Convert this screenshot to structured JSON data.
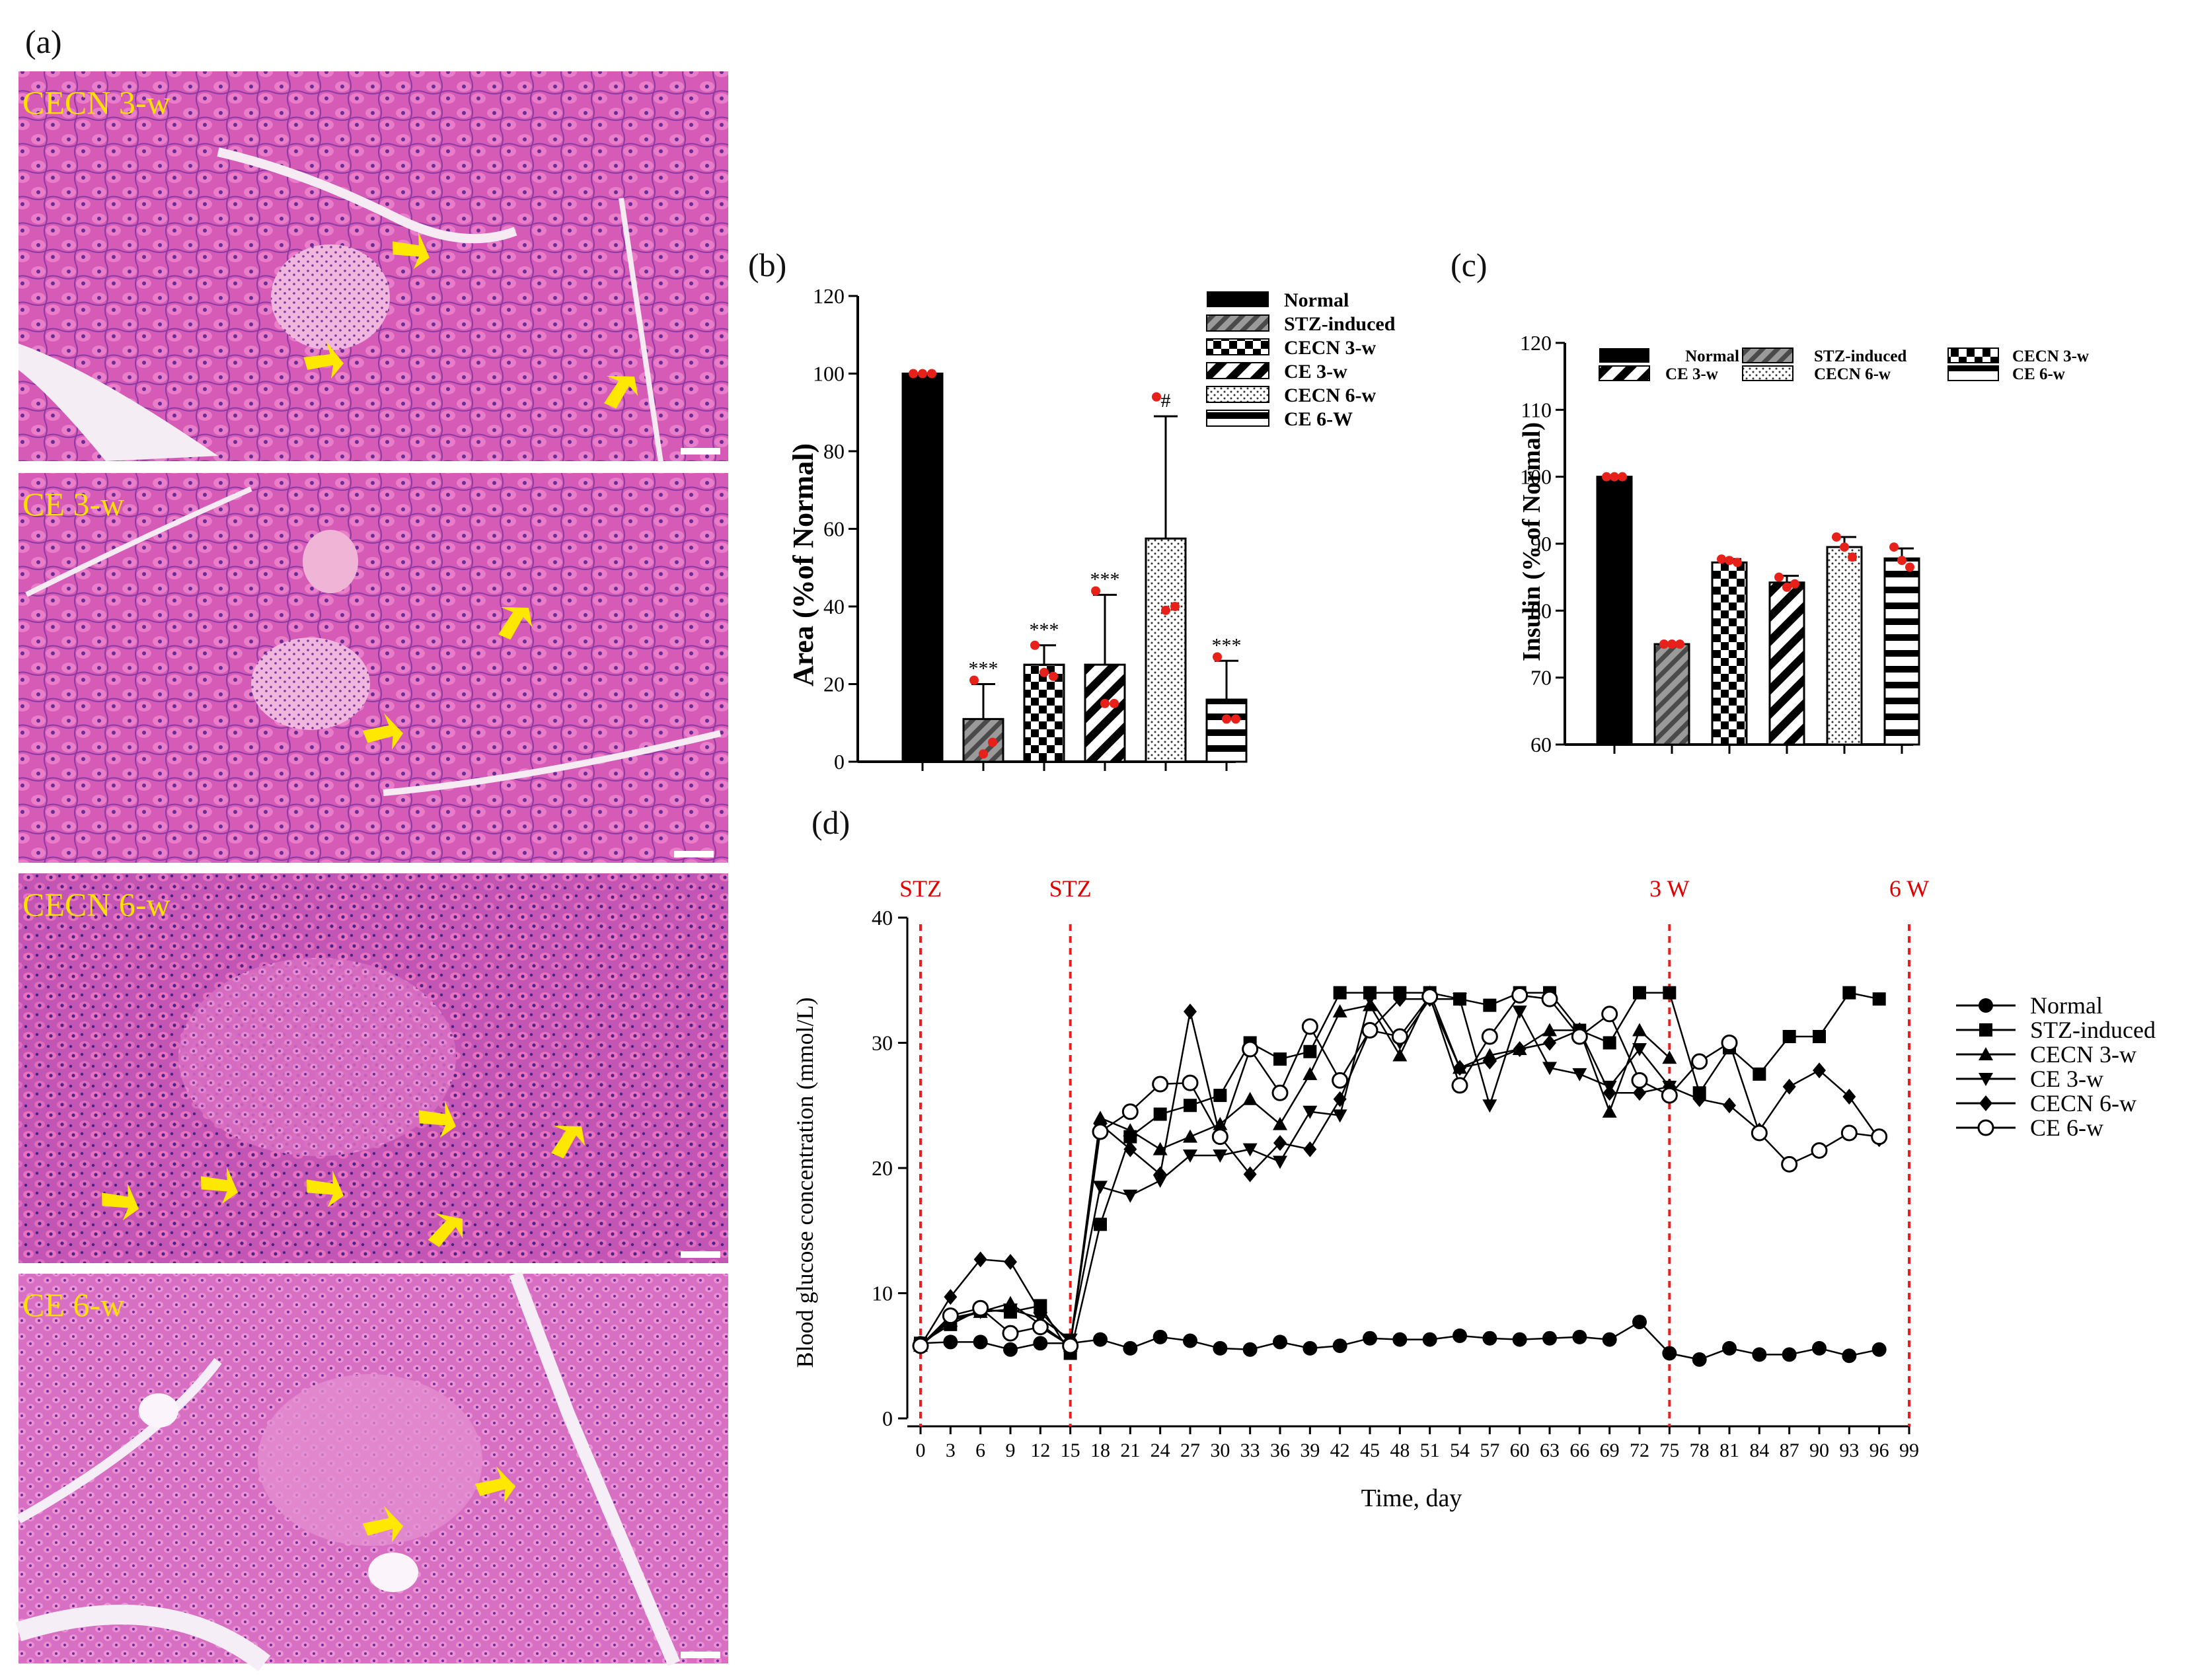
{
  "figure": {
    "panel_a_label": "(a)",
    "panel_b_label": "(b)",
    "panel_c_label": "(c)",
    "panel_d_label": "(d)"
  },
  "micrographs": [
    {
      "label": "CECN 3-w"
    },
    {
      "label": "CE 3-w"
    },
    {
      "label": "CECN 6-w"
    },
    {
      "label": "CE 6-w"
    }
  ],
  "colors": {
    "tissue_pink": "#d85ab8",
    "tissue_purple": "#7a3aa8",
    "arrow_yellow": "#ffe800",
    "red_dot": "#e8201a",
    "guide_red": "#ee1c1c"
  },
  "chart_data": [
    {
      "id": "b",
      "type": "bar",
      "ylabel": "Area (%of Normal)",
      "ylim": [
        0,
        120
      ],
      "yticks": [
        "0",
        "20",
        "40",
        "60",
        "80",
        "100",
        "120"
      ],
      "categories": [
        "Normal",
        "STZ-induced",
        "CECN 3-w",
        "CE 3-w",
        "CECN 6-w",
        "CE 6-W"
      ],
      "values": [
        100,
        11,
        25,
        25,
        57.5,
        16
      ],
      "errors": [
        0,
        9,
        5,
        18,
        31.5,
        10
      ],
      "points": [
        [
          100,
          100,
          100
        ],
        [
          21,
          2,
          5
        ],
        [
          30,
          23,
          22
        ],
        [
          44,
          15,
          15
        ],
        [
          94,
          39,
          40
        ],
        [
          27,
          11,
          11
        ]
      ],
      "annotations": [
        "",
        "***",
        "***",
        "***",
        "#",
        "***"
      ],
      "legend": [
        "Normal",
        "STZ-induced",
        "CECN 3-w",
        "CE 3-w",
        "CECN 6-w",
        "CE 6-W"
      ]
    },
    {
      "id": "c",
      "type": "bar",
      "ylabel": "Insulin (% of Normal)",
      "ylim": [
        60,
        120
      ],
      "yticks": [
        "60",
        "70",
        "80",
        "90",
        "100",
        "110",
        "120"
      ],
      "categories": [
        "Normal",
        "STZ-induced",
        "CECN 3-w",
        "CE 3-w",
        "CECN 6-w",
        "CE 6-w"
      ],
      "values": [
        100,
        75,
        87.2,
        84.2,
        89.5,
        87.8
      ],
      "errors": [
        0,
        0.2,
        0.5,
        1,
        1.5,
        1.5
      ],
      "points": [
        [
          100,
          100,
          100
        ],
        [
          75,
          75,
          75
        ],
        [
          87.7,
          87.5,
          87.2
        ],
        [
          85,
          83.5,
          84
        ],
        [
          91,
          89.5,
          88
        ],
        [
          89.5,
          87.5,
          86.5
        ]
      ],
      "legend": [
        "Normal",
        "STZ-induced",
        "CECN 3-w",
        "CE 3-w",
        "CECN 6-w",
        "CE 6-w"
      ]
    },
    {
      "id": "d",
      "type": "line",
      "xlabel": "Time, day",
      "ylabel": "Blood glucose concentration (mmol/L)",
      "xlim": [
        0,
        99
      ],
      "ylim": [
        0,
        40
      ],
      "xticks": [
        "0",
        "3",
        "6",
        "9",
        "12",
        "15",
        "18",
        "21",
        "24",
        "27",
        "30",
        "33",
        "36",
        "39",
        "42",
        "45",
        "48",
        "51",
        "54",
        "57",
        "60",
        "63",
        "66",
        "69",
        "72",
        "75",
        "78",
        "81",
        "84",
        "87",
        "90",
        "93",
        "96",
        "99"
      ],
      "yticks": [
        "0",
        "10",
        "20",
        "30",
        "40"
      ],
      "x": [
        0,
        3,
        6,
        9,
        12,
        15,
        18,
        21,
        24,
        27,
        30,
        33,
        36,
        39,
        42,
        45,
        48,
        51,
        54,
        57,
        60,
        63,
        66,
        69,
        72,
        75,
        78,
        81,
        84,
        87,
        90,
        93,
        96
      ],
      "series": [
        {
          "name": "Normal",
          "marker": "circle",
          "values": [
            6,
            6.1,
            6.1,
            5.5,
            6,
            6,
            6.3,
            5.6,
            6.5,
            6.2,
            5.6,
            5.5,
            6.1,
            5.6,
            5.8,
            6.4,
            6.3,
            6.3,
            6.6,
            6.4,
            6.3,
            6.4,
            6.5,
            6.3,
            7.7,
            5.2,
            4.7,
            5.6,
            5.1,
            5.1,
            5.6,
            5,
            5.5
          ]
        },
        {
          "name": "STZ-induced",
          "marker": "square",
          "values": [
            6,
            7.5,
            8.7,
            8.5,
            9,
            5.2,
            15.5,
            22.5,
            24.3,
            25,
            25.8,
            30,
            28.7,
            29.3,
            34,
            34,
            34,
            34,
            33.5,
            33,
            34,
            34,
            31,
            30,
            34,
            34,
            26,
            29.6,
            27.5,
            30.5,
            30.5,
            34,
            33.5
          ]
        },
        {
          "name": "CECN 3-w",
          "marker": "triangle-up",
          "values": [
            5.8,
            7.8,
            8.5,
            9.2,
            7.5,
            5.8,
            24,
            23,
            21.5,
            22.5,
            23.5,
            25.5,
            23.5,
            27.5,
            32.5,
            33,
            29,
            34,
            28,
            29,
            29.5,
            31,
            31,
            24.5,
            31,
            28.8,
            null,
            null,
            null,
            null,
            null,
            null,
            null
          ]
        },
        {
          "name": "CE 3-w",
          "marker": "triangle-down",
          "values": [
            5.8,
            8,
            8.5,
            8.7,
            8,
            6.3,
            18.5,
            17.8,
            19,
            21,
            21,
            21.5,
            20.5,
            24.5,
            24.2,
            33.5,
            30,
            33.5,
            33.5,
            25,
            32.5,
            28,
            27.5,
            26.5,
            29.5,
            26.5,
            null,
            null,
            null,
            null,
            null,
            null,
            null
          ]
        },
        {
          "name": "CECN 6-w",
          "marker": "diamond",
          "values": [
            5.8,
            9.7,
            12.7,
            12.5,
            8.5,
            6,
            23.5,
            21.5,
            19.5,
            32.5,
            22.5,
            19.5,
            22,
            21.5,
            25.5,
            31,
            33.5,
            33.5,
            28,
            28.5,
            29.5,
            30,
            31,
            26,
            26,
            26.5,
            25.5,
            25,
            23,
            26.5,
            27.8,
            25.7,
            22.3
          ]
        },
        {
          "name": "CE 6-w",
          "marker": "circle-open",
          "values": [
            5.8,
            8.2,
            8.8,
            6.8,
            7.3,
            5.8,
            22.9,
            24.5,
            26.7,
            26.8,
            22.5,
            29.5,
            26,
            31.3,
            27,
            31,
            30.5,
            33.7,
            26.6,
            30.5,
            33.8,
            33.5,
            30.5,
            32.3,
            27,
            25.8,
            28.5,
            30,
            22.8,
            20.3,
            21.4,
            22.8,
            22.5
          ]
        }
      ],
      "markers": [
        {
          "x": 0,
          "label": "STZ"
        },
        {
          "x": 15,
          "label": "STZ"
        },
        {
          "x": 75,
          "label": "3 W"
        },
        {
          "x": 99,
          "label": "6 W"
        }
      ]
    }
  ]
}
